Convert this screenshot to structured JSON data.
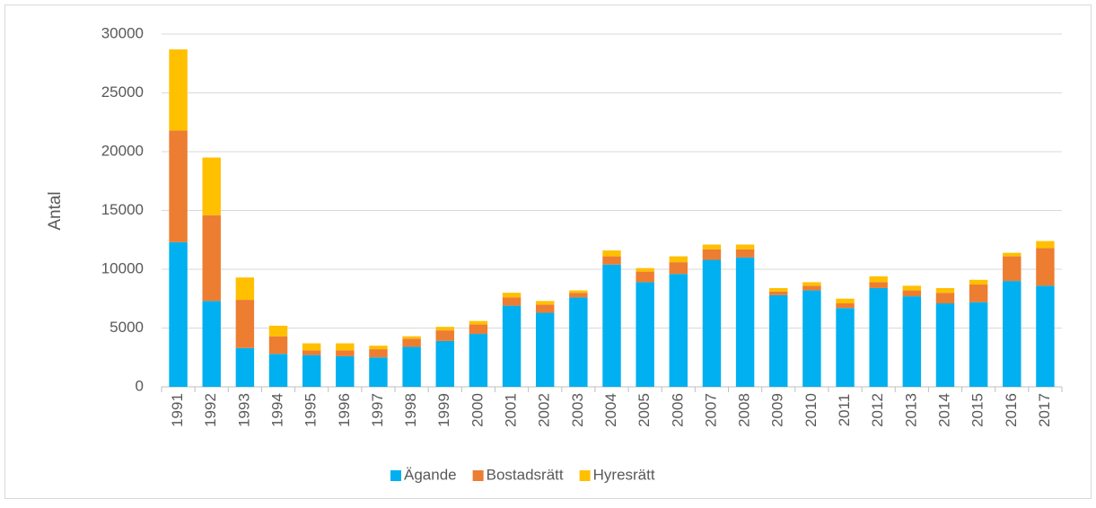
{
  "chart_data": {
    "type": "stacked_bar",
    "y_label": "Antal",
    "categories": [
      "1991",
      "1992",
      "1993",
      "1994",
      "1995",
      "1996",
      "1997",
      "1998",
      "1999",
      "2000",
      "2001",
      "2002",
      "2003",
      "2004",
      "2005",
      "2006",
      "2007",
      "2008",
      "2009",
      "2010",
      "2011",
      "2012",
      "2013",
      "2014",
      "2015",
      "2016",
      "2017"
    ],
    "series": [
      {
        "name": "Ägande",
        "color": "#00b0f0",
        "values": [
          12300,
          7300,
          3300,
          2800,
          2700,
          2600,
          2500,
          3400,
          3900,
          4500,
          6900,
          6300,
          7600,
          10400,
          8900,
          9600,
          10800,
          11000,
          7800,
          8200,
          6700,
          8400,
          7700,
          7100,
          7200,
          9000,
          8600
        ]
      },
      {
        "name": "Bostadsrätt",
        "color": "#ed7d31",
        "values": [
          9500,
          7300,
          4100,
          1500,
          400,
          500,
          700,
          700,
          900,
          800,
          700,
          700,
          400,
          700,
          900,
          1000,
          900,
          700,
          300,
          400,
          400,
          500,
          500,
          900,
          1500,
          2100,
          3200
        ]
      },
      {
        "name": "Hyresrätt",
        "color": "#ffc000",
        "values": [
          6900,
          4900,
          1900,
          900,
          600,
          600,
          300,
          200,
          300,
          300,
          400,
          300,
          200,
          500,
          300,
          500,
          400,
          400,
          300,
          300,
          400,
          500,
          400,
          400,
          400,
          300,
          600
        ]
      }
    ],
    "ylim": [
      0,
      30000
    ],
    "yticks": [
      0,
      5000,
      10000,
      15000,
      20000,
      25000,
      30000
    ],
    "grid": true,
    "legend": "bottom"
  }
}
